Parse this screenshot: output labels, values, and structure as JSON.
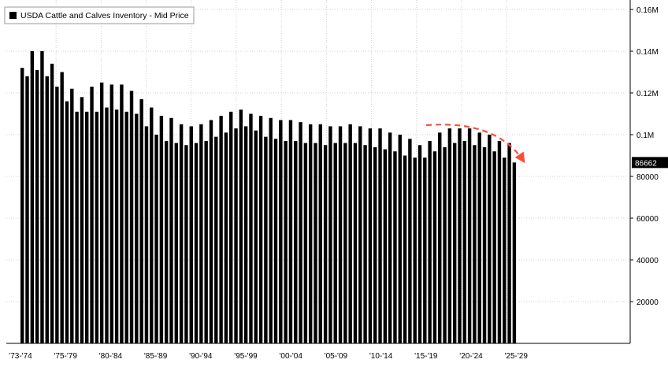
{
  "chart_data": {
    "type": "bar",
    "title": "",
    "xlabel": "",
    "ylabel": "",
    "legend": {
      "label": "USDA Cattle and Calves Inventory - Mid Price",
      "placement": "top-left"
    },
    "series": [
      {
        "name": "USDA Cattle and Calves Inventory - Mid Price",
        "color": "#000000",
        "values": [
          132000,
          128000,
          140000,
          131000,
          140000,
          128000,
          134000,
          123000,
          130000,
          116000,
          122000,
          111000,
          118000,
          111000,
          123000,
          111000,
          125000,
          113000,
          124000,
          112000,
          124000,
          111000,
          121000,
          110000,
          117000,
          104000,
          113000,
          100000,
          109000,
          97000,
          108000,
          96000,
          105000,
          95000,
          104000,
          96000,
          105000,
          97000,
          107000,
          99000,
          109000,
          101000,
          111000,
          103000,
          112000,
          104000,
          110000,
          102000,
          109000,
          99000,
          108000,
          98000,
          107000,
          97000,
          107000,
          97000,
          106000,
          96000,
          105000,
          96000,
          105000,
          95000,
          104000,
          96000,
          104000,
          96000,
          105000,
          96000,
          104000,
          95000,
          103000,
          94000,
          103000,
          93000,
          101000,
          92000,
          100000,
          90000,
          98000,
          89000,
          95000,
          89000,
          97000,
          92000,
          101000,
          94000,
          103000,
          96000,
          103000,
          97000,
          103000,
          95000,
          101000,
          94000,
          100000,
          92000,
          97000,
          89000,
          96000,
          86662
        ]
      }
    ],
    "x_tick_labels": [
      "'73-'74",
      "'75-'79",
      "'80-'84",
      "'85-'89",
      "'90-'94",
      "'95-'99",
      "'00-'04",
      "'05-'09",
      "'10-'14",
      "'15-'19",
      "'20-'24",
      "'25-'29"
    ],
    "y_tick_labels": [
      "20000",
      "40000",
      "60000",
      "80000",
      "0.1M",
      "0.12M",
      "0.14M",
      "0.16M"
    ],
    "y_ticks": [
      20000,
      40000,
      60000,
      80000,
      100000,
      120000,
      140000,
      160000
    ],
    "ylim": [
      0,
      160000
    ],
    "last_value_label": "86662",
    "last_value": 86662,
    "annotation": {
      "type": "dashed-arrow",
      "description": "downtrend",
      "color": "#ff4c39"
    },
    "grid": {
      "horizontal": true,
      "vertical": true,
      "style": "dotted"
    },
    "axis_side": "right",
    "colors": {
      "background": "#ffffff",
      "bars": "#000000",
      "grid": "#d0d0d0",
      "arrow": "#ff4c39"
    }
  }
}
